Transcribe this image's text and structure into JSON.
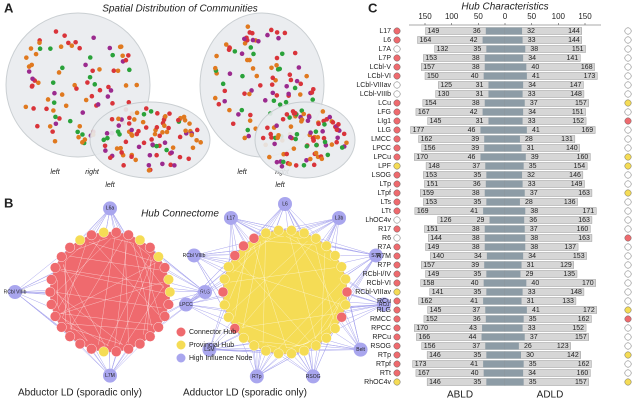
{
  "panel_a": {
    "label": "A",
    "title": "Spatial Distribution of Communities",
    "views": [
      {
        "left": "left",
        "right": "right"
      },
      {
        "left": "left",
        "right": "right"
      },
      {
        "left": "left",
        "right": "right"
      },
      {
        "left": "left",
        "right": "right"
      }
    ]
  },
  "panel_b": {
    "label": "B",
    "title": "Hub Connectome",
    "legend": [
      {
        "name": "Connector Hub",
        "color": "#ef6a6e"
      },
      {
        "name": "Provincial Hub",
        "color": "#f5dc55"
      },
      {
        "name": "High Influence Node",
        "color": "#a9a6ee"
      }
    ],
    "networks": [
      {
        "caption": "Abductor LD (sporadic only)",
        "core_color": "#ef6a6e",
        "outer_nodes": [
          "L6a",
          "RLG",
          "L7M",
          "RCbl VIIIb"
        ]
      },
      {
        "caption": "Adductor LD (sporadic only)",
        "core_color": "#f5dc55",
        "outer_nodes": [
          "L6",
          "L3b",
          "S7A",
          "RCu",
          "Belt",
          "RSOG",
          "RTp",
          "LSM",
          "LPCC",
          "RCbl VIIIb",
          "L17"
        ]
      }
    ]
  },
  "chart_data": {
    "type": "mirrored_bar",
    "label": "C",
    "title": "Hub Characteristics",
    "categories": [
      "L17",
      "L6",
      "L7A",
      "L7P",
      "LCbl-V",
      "LCbl-VI",
      "LCbl-VIIIav",
      "LCbl-VIIIb",
      "LCu",
      "LFG",
      "LIg1",
      "LLG",
      "LMCC",
      "LPCC",
      "LPCu",
      "LPF",
      "LSOG",
      "LTp",
      "LTpf",
      "LTs",
      "LTt",
      "LhOC4v",
      "R17",
      "R6",
      "R7A",
      "R7M",
      "R7P",
      "RCbl-I/IV",
      "RCbl-VI",
      "RCbl-VIIIav",
      "RCu",
      "RLG",
      "RMCC",
      "RPCC",
      "RPCu",
      "RSOG",
      "RTp",
      "RTpf",
      "RTt",
      "RhOC4v"
    ],
    "xlim": [
      0,
      180
    ],
    "xticks": [
      0,
      50,
      100,
      150
    ],
    "bar_color": "#d6d6d6",
    "hub_color": "#8d9ca6",
    "series": [
      {
        "name": "ABLD",
        "side": "left",
        "values": [
          149,
          164,
          132,
          153,
          157,
          150,
          125,
          130,
          154,
          167,
          145,
          177,
          162,
          156,
          170,
          148,
          153,
          151,
          159,
          153,
          169,
          126,
          151,
          144,
          149,
          140,
          157,
          149,
          158,
          141,
          162,
          145,
          152,
          170,
          166,
          156,
          146,
          173,
          167,
          146
        ],
        "hub_values": [
          36,
          42,
          35,
          38,
          38,
          40,
          31,
          31,
          38,
          42,
          31,
          46,
          39,
          39,
          46,
          37,
          35,
          36,
          38,
          35,
          41,
          29,
          38,
          38,
          38,
          34,
          39,
          35,
          40,
          35,
          41,
          37,
          36,
          43,
          44,
          37,
          35,
          41,
          40,
          35
        ],
        "marker_colors": [
          "#ef6a6e",
          "#ef6a6e",
          "#ffffff",
          "#ef6a6e",
          "#ef6a6e",
          "#ef6a6e",
          "#ffffff",
          "#ffffff",
          "#ef6a6e",
          "#ef6a6e",
          "#ef6a6e",
          "#ef6a6e",
          "#ef6a6e",
          "#ef6a6e",
          "#ef6a6e",
          "#f5dc55",
          "#ef6a6e",
          "#ef6a6e",
          "#ef6a6e",
          "#ef6a6e",
          "#ef6a6e",
          "#ffffff",
          "#ef6a6e",
          "#ffffff",
          "#ef6a6e",
          "#ef6a6e",
          "#ef6a6e",
          "#ef6a6e",
          "#ef6a6e",
          "#f5dc55",
          "#ef6a6e",
          "#ef6a6e",
          "#ef6a6e",
          "#ef6a6e",
          "#ef6a6e",
          "#ef6a6e",
          "#ef6a6e",
          "#ef6a6e",
          "#ef6a6e",
          "#f5dc55"
        ]
      },
      {
        "name": "ADLD",
        "side": "right",
        "values": [
          144,
          144,
          151,
          141,
          168,
          173,
          147,
          148,
          157,
          151,
          152,
          169,
          131,
          140,
          160,
          154,
          146,
          149,
          163,
          136,
          171,
          163,
          160,
          163,
          137,
          153,
          129,
          135,
          170,
          148,
          133,
          172,
          162,
          152,
          157,
          123,
          142,
          162,
          160,
          157
        ],
        "hub_values": [
          32,
          33,
          38,
          34,
          40,
          41,
          34,
          33,
          37,
          34,
          33,
          41,
          28,
          31,
          39,
          35,
          32,
          33,
          37,
          28,
          38,
          36,
          37,
          38,
          38,
          34,
          31,
          29,
          40,
          33,
          31,
          41,
          35,
          33,
          37,
          26,
          30,
          35,
          34,
          35
        ],
        "marker_colors": [
          "#ffffff",
          "#ffffff",
          "#ffffff",
          "#ffffff",
          "#ffffff",
          "#ffffff",
          "#ffffff",
          "#ffffff",
          "#f5dc55",
          "#ffffff",
          "#ef6a6e",
          "#ffffff",
          "#ffffff",
          "#ffffff",
          "#f5dc55",
          "#f5dc55",
          "#ffffff",
          "#ffffff",
          "#f5dc55",
          "#ffffff",
          "#ffffff",
          "#ffffff",
          "#ffffff",
          "#ef6a6e",
          "#ffffff",
          "#ffffff",
          "#ffffff",
          "#ffffff",
          "#ffffff",
          "#ffffff",
          "#ffffff",
          "#f5dc55",
          "#ef6a6e",
          "#ffffff",
          "#ffffff",
          "#ffffff",
          "#f5dc55",
          "#ffffff",
          "#ffffff",
          "#f5dc55"
        ]
      }
    ]
  }
}
